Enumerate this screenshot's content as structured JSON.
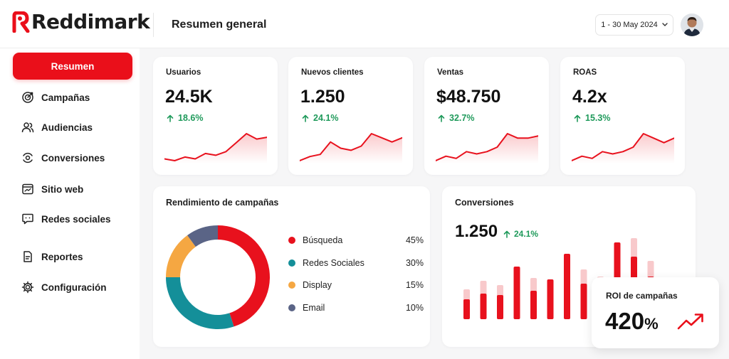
{
  "app": {
    "brand": "Reddimark",
    "page_title": "Resumen general"
  },
  "header": {
    "date_range": "1 - 30 May 2024",
    "avatar_icon": "user-avatar"
  },
  "sidebar": {
    "items": [
      {
        "label": "Resumen",
        "icon": "none",
        "active": true
      },
      {
        "label": "Campañas",
        "icon": "target-icon"
      },
      {
        "label": "Audiencias",
        "icon": "users-icon"
      },
      {
        "label": "Conversiones",
        "icon": "conversion-icon"
      },
      {
        "label": "Sitio web",
        "icon": "browser-icon"
      },
      {
        "label": "Redes sociales",
        "icon": "chat-icon"
      },
      {
        "label": "Reportes",
        "icon": "report-icon"
      },
      {
        "label": "Configuración",
        "icon": "gear-icon"
      }
    ]
  },
  "kpis": [
    {
      "label": "Usuarios",
      "value": "24.5K",
      "delta": "18.6%",
      "trend": [
        3,
        2,
        4,
        3,
        6,
        5,
        7,
        12,
        17,
        14,
        15
      ]
    },
    {
      "label": "Nuevos clientes",
      "value": "1.250",
      "delta": "24.1%",
      "trend": [
        2,
        4,
        5,
        11,
        8,
        7,
        9,
        15,
        13,
        11,
        13
      ]
    },
    {
      "label": "Ventas",
      "value": "$48.750",
      "delta": "32.7%",
      "trend": [
        3,
        5,
        4,
        7,
        6,
        7,
        9,
        15,
        13,
        13,
        14
      ]
    },
    {
      "label": "ROAS",
      "value": "4.2x",
      "delta": "15.3%",
      "trend": [
        3,
        5,
        4,
        7,
        6,
        7,
        9,
        15,
        13,
        11,
        13
      ]
    }
  ],
  "campaign_performance": {
    "title": "Rendimiento de campañas",
    "segments": [
      {
        "name": "Búsqueda",
        "value": 45,
        "label": "45%",
        "color": "#e8111d"
      },
      {
        "name": "Redes Sociales",
        "value": 30,
        "label": "30%",
        "color": "#148f99"
      },
      {
        "name": "Display",
        "value": 15,
        "label": "15%",
        "color": "#f5a742"
      },
      {
        "name": "Email",
        "value": 10,
        "label": "10%",
        "color": "#5a6486"
      }
    ]
  },
  "conversions": {
    "title": "Conversiones",
    "value": "1.250",
    "delta": "24.1%",
    "bars": [
      {
        "primary": 28,
        "secondary": 42
      },
      {
        "primary": 36,
        "secondary": 54
      },
      {
        "primary": 34,
        "secondary": 48
      },
      {
        "primary": 74,
        "secondary": 0
      },
      {
        "primary": 40,
        "secondary": 58
      },
      {
        "primary": 56,
        "secondary": 44
      },
      {
        "primary": 92,
        "secondary": 0
      },
      {
        "primary": 50,
        "secondary": 70
      },
      {
        "primary": 34,
        "secondary": 60
      },
      {
        "primary": 108,
        "secondary": 0
      },
      {
        "primary": 88,
        "secondary": 114
      },
      {
        "primary": 60,
        "secondary": 82
      }
    ]
  },
  "roi": {
    "label": "ROI de campañas",
    "value": "420",
    "unit": "%"
  },
  "colors": {
    "brand_red": "#ea0f1a",
    "positive_green": "#1f9a5b"
  }
}
